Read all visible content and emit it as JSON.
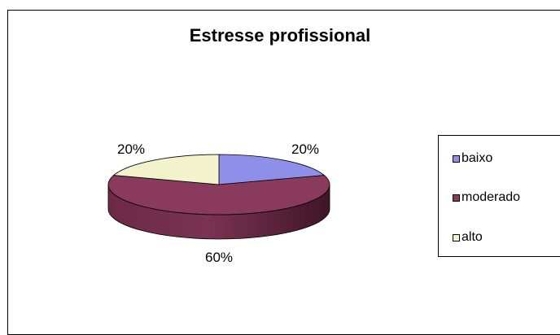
{
  "chart_data": {
    "type": "pie",
    "title": "Estresse profissional",
    "categories": [
      "baixo",
      "moderado",
      "alto"
    ],
    "values": [
      20,
      60,
      20
    ],
    "labels": [
      "20%",
      "60%",
      "20%"
    ],
    "colors": [
      "#8e8fe8",
      "#8a3a5c",
      "#f2f2cc"
    ],
    "legend": "right",
    "style": "3d"
  }
}
